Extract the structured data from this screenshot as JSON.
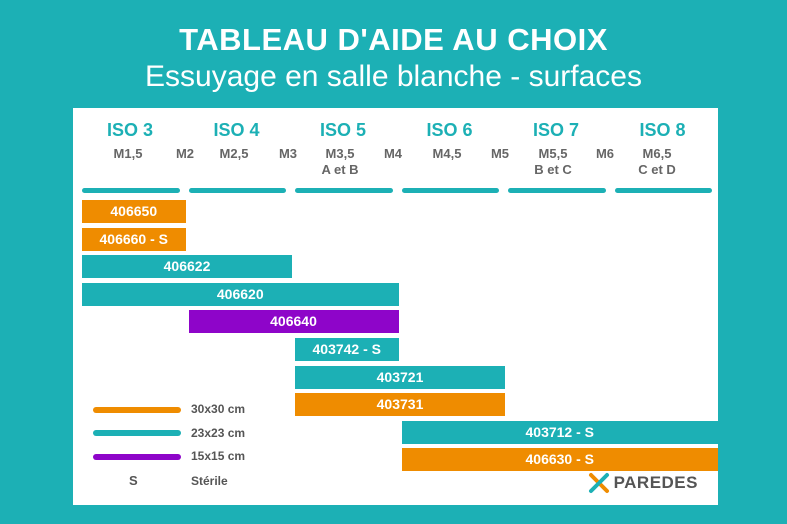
{
  "header": {
    "title": "TABLEAU D'AIDE AU CHOIX",
    "subtitle": "Essuyage en salle blanche - surfaces"
  },
  "iso_classes": [
    "ISO 3",
    "ISO 4",
    "ISO 5",
    "ISO 6",
    "ISO 7",
    "ISO 8"
  ],
  "m_classes": [
    {
      "label": "M1,5",
      "sub": ""
    },
    {
      "label": "M2",
      "sub": ""
    },
    {
      "label": "M2,5",
      "sub": ""
    },
    {
      "label": "M3",
      "sub": ""
    },
    {
      "label": "M3,5",
      "sub": "A et B"
    },
    {
      "label": "M4",
      "sub": ""
    },
    {
      "label": "M4,5",
      "sub": ""
    },
    {
      "label": "M5",
      "sub": ""
    },
    {
      "label": "M5,5",
      "sub": "B et C"
    },
    {
      "label": "M6",
      "sub": ""
    },
    {
      "label": "M6,5",
      "sub": "C et D"
    }
  ],
  "colors": {
    "size_30x30": "#ef8c00",
    "size_23x23": "#1cb0b5",
    "size_15x15": "#8e05c9",
    "background": "#1cb0b5"
  },
  "products": [
    {
      "label": "406650",
      "size": "30x30",
      "from_iso": 0,
      "to_iso": 0
    },
    {
      "label": "406660 - S",
      "size": "30x30",
      "from_iso": 0,
      "to_iso": 0
    },
    {
      "label": "406622",
      "size": "23x23",
      "from_iso": 0,
      "to_iso": 1
    },
    {
      "label": "406620",
      "size": "23x23",
      "from_iso": 0,
      "to_iso": 2
    },
    {
      "label": "406640",
      "size": "15x15",
      "from_iso": 1,
      "to_iso": 2
    },
    {
      "label": "403742 - S",
      "size": "23x23",
      "from_iso": 2,
      "to_iso": 2
    },
    {
      "label": "403721",
      "size": "23x23",
      "from_iso": 2,
      "to_iso": 3
    },
    {
      "label": "403731",
      "size": "30x30",
      "from_iso": 2,
      "to_iso": 3
    },
    {
      "label": "403712 - S",
      "size": "23x23",
      "from_iso": 3,
      "to_iso": 5
    },
    {
      "label": "406630 - S",
      "size": "30x30",
      "from_iso": 3,
      "to_iso": 5
    }
  ],
  "legend": {
    "size_30x30": "30x30 cm",
    "size_23x23": "23x23 cm",
    "size_15x15": "15x15 cm",
    "sterile_key": "S",
    "sterile_label": "Stérile"
  },
  "logo": {
    "text": "PAREDES",
    "icon": "paredes-logo-icon"
  }
}
